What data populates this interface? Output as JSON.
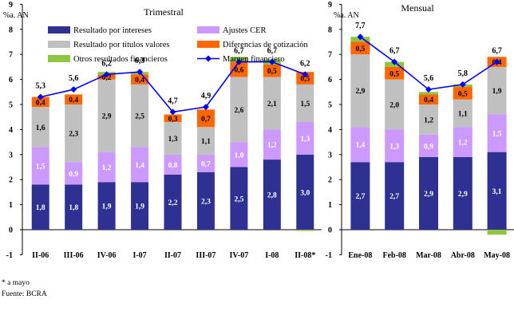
{
  "colors": {
    "intereses": "#2e3192",
    "titulos": "#c0c0c0",
    "otros": "#8dc63f",
    "cer": "#cc99ff",
    "cotizacion": "#ff6600",
    "margen": "#0000ff"
  },
  "legend": {
    "intereses": "Resultado por intereses",
    "cer": "Ajustes CER",
    "titulos": "Resultado por títulos valores",
    "cotizacion": "Diferencias de cotización",
    "otros": "Otros resultados financieros",
    "margen": "Margen financiero"
  },
  "notes": {
    "footnote": "* a mayo",
    "source": "Fuente: BCRA"
  },
  "chart_data": [
    {
      "type": "bar",
      "title": "Trimestral",
      "ylabel": "%a. AN",
      "ylim": [
        -1,
        9
      ],
      "yticks": [
        -1,
        0,
        1,
        2,
        3,
        4,
        5,
        6,
        7,
        8,
        9
      ],
      "stacked": true,
      "categories": [
        "II-06",
        "III-06",
        "IV-06",
        "I-07",
        "II-07",
        "III-07",
        "IV-07",
        "I-08",
        "II-08*"
      ],
      "series": [
        {
          "key": "intereses",
          "name": "Resultado por intereses",
          "values": [
            1.8,
            1.8,
            1.9,
            1.9,
            2.2,
            2.3,
            2.5,
            2.8,
            3.0
          ],
          "labels": [
            "1,8",
            "1,8",
            "1,9",
            "1,9",
            "2,2",
            "2,3",
            "2,5",
            "2,8",
            "3,0"
          ]
        },
        {
          "key": "cer",
          "name": "Ajustes CER",
          "values": [
            1.5,
            0.9,
            1.2,
            1.4,
            0.8,
            0.7,
            1.0,
            1.2,
            1.3
          ],
          "labels": [
            "1,5",
            "0,9",
            "1,2",
            "1,4",
            "0,8",
            "0,7",
            "1,0",
            "1,2",
            "1,3"
          ]
        },
        {
          "key": "titulos",
          "name": "Resultado por títulos valores",
          "values": [
            1.6,
            2.3,
            2.9,
            2.5,
            1.3,
            1.1,
            2.6,
            2.1,
            1.5
          ],
          "labels": [
            "1,6",
            "2,3",
            "2,9",
            "2,5",
            "1,3",
            "1,1",
            "2,6",
            "2,1",
            "1,5"
          ]
        },
        {
          "key": "cotizacion",
          "name": "Diferencias de cotización",
          "values": [
            0.4,
            0.4,
            0.2,
            0.4,
            0.3,
            0.7,
            0.6,
            0.5,
            0.5
          ],
          "labels": [
            "0,4",
            "0,4",
            "0,2",
            "0,4",
            "0,3",
            "0,7",
            "0,6",
            "0,5",
            "0,5"
          ]
        },
        {
          "key": "otros",
          "name": "Otros resultados financieros",
          "values": [
            0.0,
            0.0,
            0.1,
            0.1,
            0.0,
            0.0,
            0.2,
            0.2,
            -0.05
          ],
          "labels": [
            "",
            "",
            "",
            "",
            "",
            "",
            "",
            "",
            ""
          ]
        }
      ],
      "line": {
        "key": "margen",
        "name": "Margen financiero",
        "values": [
          5.3,
          5.6,
          6.2,
          6.3,
          4.7,
          4.9,
          6.7,
          6.7,
          6.2
        ],
        "labels": [
          "5,3",
          "5,6",
          "6,2",
          "6,3",
          "4,7",
          "4,9",
          "6,7",
          "6,7",
          "6,2"
        ]
      }
    },
    {
      "type": "bar",
      "title": "Mensual",
      "ylabel": "%a. AN",
      "ylim": [
        -1,
        9
      ],
      "yticks": [
        -1,
        0,
        1,
        2,
        3,
        4,
        5,
        6,
        7,
        8,
        9
      ],
      "stacked": true,
      "categories": [
        "Ene-08",
        "Feb-08",
        "Mar-08",
        "Abr-08",
        "May-08"
      ],
      "series": [
        {
          "key": "intereses",
          "name": "Resultado por intereses",
          "values": [
            2.7,
            2.7,
            2.9,
            2.9,
            3.1
          ],
          "labels": [
            "2,7",
            "2,7",
            "2,9",
            "2,9",
            "3,1"
          ]
        },
        {
          "key": "cer",
          "name": "Ajustes CER",
          "values": [
            1.4,
            1.3,
            0.9,
            1.2,
            1.5
          ],
          "labels": [
            "1,4",
            "1,3",
            "0,9",
            "1,2",
            "1,5"
          ]
        },
        {
          "key": "titulos",
          "name": "Resultado por títulos valores",
          "values": [
            2.9,
            2.0,
            1.2,
            1.1,
            1.9
          ],
          "labels": [
            "2,9",
            "2,0",
            "1,2",
            "1,1",
            "1,9"
          ]
        },
        {
          "key": "cotizacion",
          "name": "Diferencias de cotización",
          "values": [
            0.5,
            0.5,
            0.4,
            0.5,
            0.4
          ],
          "labels": [
            "0,5",
            "0,5",
            "0,4",
            "0,5",
            "0,4"
          ]
        },
        {
          "key": "otros",
          "name": "Otros resultados financieros",
          "values": [
            0.2,
            0.2,
            0.1,
            0.1,
            -0.2
          ],
          "labels": [
            "",
            "",
            "",
            "",
            ""
          ]
        }
      ],
      "line": {
        "key": "margen",
        "name": "Margen financiero",
        "values": [
          7.7,
          6.7,
          5.6,
          5.8,
          6.7
        ],
        "labels": [
          "7,7",
          "6,7",
          "5,6",
          "5,8",
          "6,7"
        ]
      }
    }
  ]
}
